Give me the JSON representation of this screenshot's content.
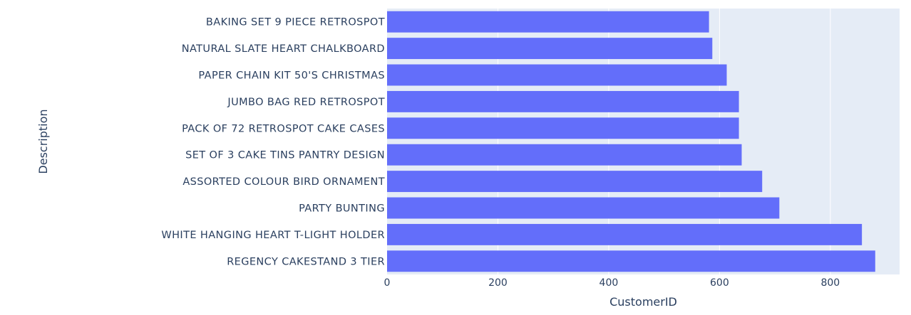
{
  "chart_data": {
    "type": "bar",
    "orientation": "horizontal",
    "xlabel": "CustomerID",
    "ylabel": "Description",
    "xlim": [
      0,
      925
    ],
    "xticks": [
      0,
      200,
      400,
      600,
      800
    ],
    "grid": true,
    "bar_color": "#636efa",
    "plot_bgcolor": "#e5ecf6",
    "categories": [
      "BAKING SET 9 PIECE RETROSPOT",
      "NATURAL SLATE HEART CHALKBOARD",
      "PAPER CHAIN KIT 50'S CHRISTMAS",
      "JUMBO BAG RED RETROSPOT",
      "PACK OF 72 RETROSPOT CAKE CASES",
      "SET OF 3 CAKE TINS PANTRY DESIGN",
      "ASSORTED COLOUR BIRD ORNAMENT",
      "PARTY BUNTING",
      "WHITE HANGING HEART T-LIGHT HOLDER",
      "REGENCY CAKESTAND 3 TIER"
    ],
    "values": [
      581,
      587,
      613,
      635,
      635,
      640,
      677,
      708,
      857,
      881
    ]
  }
}
